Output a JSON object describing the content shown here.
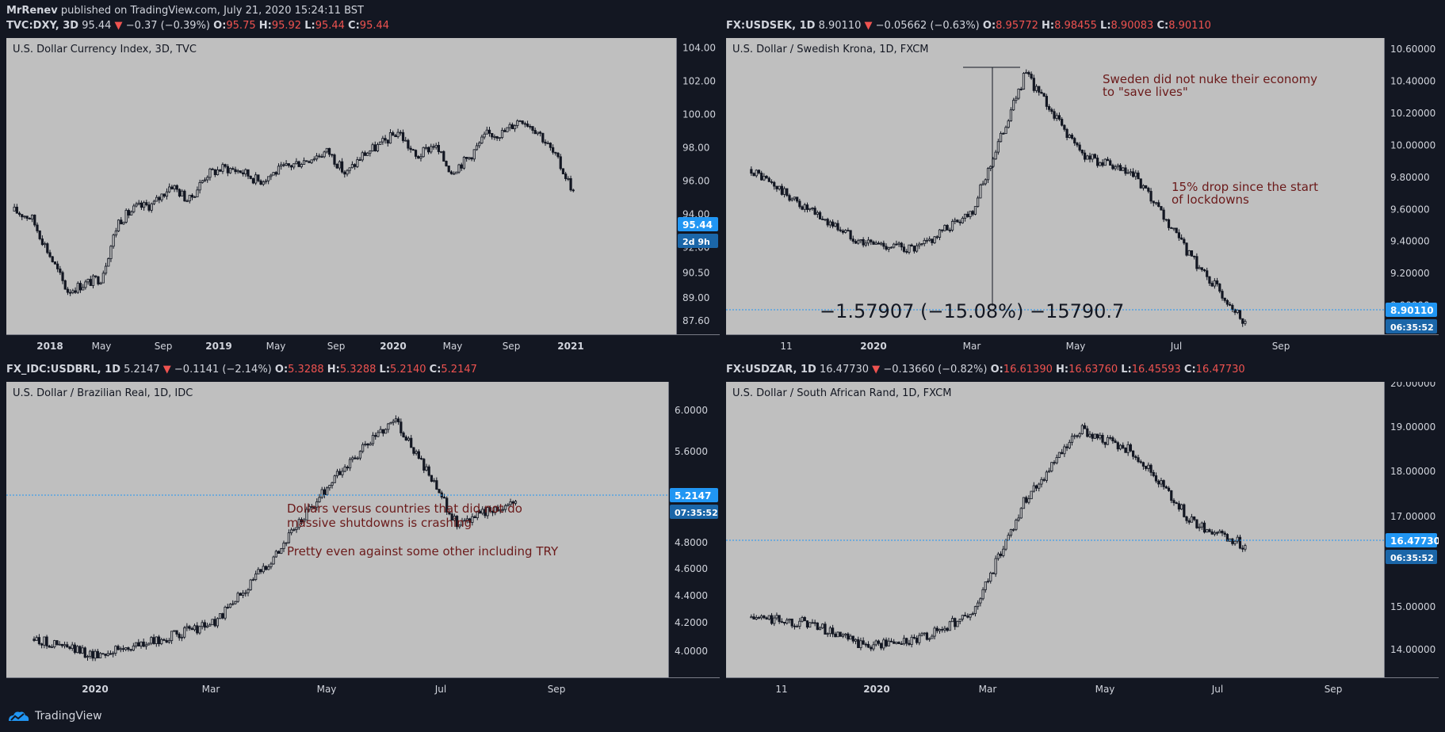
{
  "publish": {
    "author": "MrRenev",
    "rest": " published on TradingView.com, July 21, 2020 15:24:11 BST"
  },
  "panels": [
    {
      "id": "dxy",
      "symbol": "TVC:DXY, 3D",
      "last": "95.44",
      "change": "−0.37 (−0.39%)",
      "ohlc": {
        "O": "95.75",
        "H": "95.92",
        "L": "95.44",
        "C": "95.44"
      },
      "chart_title": "U.S. Dollar Currency Index, 3D, TVC",
      "price_tag": "95.44",
      "countdown": "2d 9h",
      "annotations": [],
      "measure": null
    },
    {
      "id": "usdsek",
      "symbol": "FX:USDSEK, 1D",
      "last": "8.90110",
      "change": "−0.05662 (−0.63%)",
      "ohlc": {
        "O": "8.95772",
        "H": "8.98455",
        "L": "8.90083",
        "C": "8.90110"
      },
      "chart_title": "U.S. Dollar / Swedish Krona, 1D, FXCM",
      "price_tag": "8.90110",
      "countdown": "06:35:52",
      "annotations": [
        {
          "lines": [
            "Sweden did not nuke their economy",
            "to \"save lives\""
          ]
        },
        {
          "lines": [
            "15% drop since the start",
            "of lockdowns"
          ]
        }
      ],
      "measure": "−1.57907 (−15.08%) −15790.7"
    },
    {
      "id": "usdbrl",
      "symbol": "FX_IDC:USDBRL, 1D",
      "last": "5.2147",
      "change": "−0.1141 (−2.14%)",
      "ohlc": {
        "O": "5.3288",
        "H": "5.3288",
        "L": "5.2140",
        "C": "5.2147"
      },
      "chart_title": "U.S. Dollar / Brazilian Real, 1D, IDC",
      "price_tag": "5.2147",
      "countdown": "07:35:52",
      "annotations": [
        {
          "lines": [
            "Dollars versus countries that did not do",
            "massive shutdowns is crashing",
            "",
            "Pretty even against some other including TRY"
          ]
        }
      ],
      "measure": null
    },
    {
      "id": "usdzar",
      "symbol": "FX:USDZAR, 1D",
      "last": "16.47730",
      "change": "−0.13660 (−0.82%)",
      "ohlc": {
        "O": "16.61390",
        "H": "16.63760",
        "L": "16.45593",
        "C": "16.47730"
      },
      "chart_title": "U.S. Dollar / South African Rand, 1D, FXCM",
      "price_tag": "16.47730",
      "countdown": "06:35:52",
      "annotations": [],
      "measure": null
    }
  ],
  "chart_data": [
    {
      "type": "line",
      "title": "U.S. Dollar Currency Index, 3D, TVC",
      "y_ticks": [
        "104.00",
        "102.00",
        "100.00",
        "98.00",
        "96.00",
        "94.00",
        "92.00",
        "90.50",
        "89.00",
        "87.60"
      ],
      "x_ticks": [
        "2018",
        "May",
        "Sep",
        "2019",
        "May",
        "Sep",
        "2020",
        "May",
        "Sep",
        "2021"
      ],
      "series": [
        {
          "x": [
            "2017-11",
            "2017-12",
            "2018-01",
            "2018-02",
            "2018-03",
            "2018-04",
            "2018-05",
            "2018-06",
            "2018-07",
            "2018-08",
            "2018-09",
            "2018-10",
            "2018-11",
            "2018-12",
            "2019-01",
            "2019-02",
            "2019-03",
            "2019-04",
            "2019-05",
            "2019-06",
            "2019-07",
            "2019-08",
            "2019-09",
            "2019-10",
            "2019-11",
            "2019-12",
            "2020-01",
            "2020-02",
            "2020-03",
            "2020-04",
            "2020-05",
            "2020-06",
            "2020-07"
          ],
          "values": [
            94.2,
            93.8,
            91.6,
            89.4,
            89.8,
            90.2,
            93.6,
            94.4,
            94.6,
            95.8,
            94.8,
            96.4,
            96.8,
            96.6,
            96.0,
            96.6,
            97.0,
            97.4,
            97.8,
            96.4,
            97.6,
            98.2,
            99.0,
            97.4,
            98.2,
            96.6,
            97.4,
            98.8,
            98.9,
            99.8,
            99.0,
            97.4,
            95.44
          ]
        }
      ]
    },
    {
      "type": "line",
      "title": "U.S. Dollar / Swedish Krona, 1D, FXCM",
      "y_ticks": [
        "10.60000",
        "10.40000",
        "10.20000",
        "10.00000",
        "9.80000",
        "9.60000",
        "9.40000",
        "9.20000",
        "9.00000"
      ],
      "x_ticks": [
        "11",
        "2020",
        "Mar",
        "May",
        "Jul",
        "Sep"
      ],
      "series": [
        {
          "x": [
            "2019-10",
            "2019-11",
            "2019-12",
            "2020-01",
            "2020-02",
            "2020-03",
            "2020-04",
            "2020-05",
            "2020-06",
            "2020-07"
          ],
          "values": [
            9.85,
            9.6,
            9.4,
            9.35,
            9.6,
            10.45,
            9.95,
            9.8,
            9.3,
            8.9011
          ]
        }
      ]
    },
    {
      "type": "line",
      "title": "U.S. Dollar / Brazilian Real, 1D, IDC",
      "y_ticks": [
        "6.0000",
        "5.6000",
        "4.8000",
        "4.6000",
        "4.4000",
        "4.2000",
        "4.0000"
      ],
      "x_ticks": [
        "2020",
        "Mar",
        "May",
        "Jul",
        "Sep"
      ],
      "series": [
        {
          "x": [
            "2019-11",
            "2019-12",
            "2020-01",
            "2020-02",
            "2020-03",
            "2020-04",
            "2020-05",
            "2020-06",
            "2020-07"
          ],
          "values": [
            4.17,
            4.05,
            4.15,
            4.3,
            4.8,
            5.4,
            5.85,
            5.05,
            5.2147
          ]
        }
      ]
    },
    {
      "type": "line",
      "title": "U.S. Dollar / South African Rand, 1D, FXCM",
      "y_ticks": [
        "20.00000",
        "19.00000",
        "18.00000",
        "17.00000",
        "15.00000",
        "14.00000"
      ],
      "x_ticks": [
        "11",
        "2020",
        "Mar",
        "May",
        "Jul",
        "Sep"
      ],
      "series": [
        {
          "x": [
            "2019-10",
            "2019-11",
            "2019-12",
            "2020-01",
            "2020-02",
            "2020-03",
            "2020-04",
            "2020-05",
            "2020-06",
            "2020-07"
          ],
          "values": [
            14.9,
            14.8,
            14.3,
            14.4,
            15.0,
            17.5,
            19.0,
            18.5,
            17.0,
            16.4773
          ]
        }
      ]
    }
  ],
  "footer": {
    "brand": "TradingView"
  },
  "colors": {
    "background": "#131722",
    "plot_bg": "#bfbfbf",
    "candle": "#131722",
    "down": "#ef5350",
    "tag_blue": "#2196f3",
    "annotation": "#6b1a1a",
    "text": "#d1d4dc"
  }
}
